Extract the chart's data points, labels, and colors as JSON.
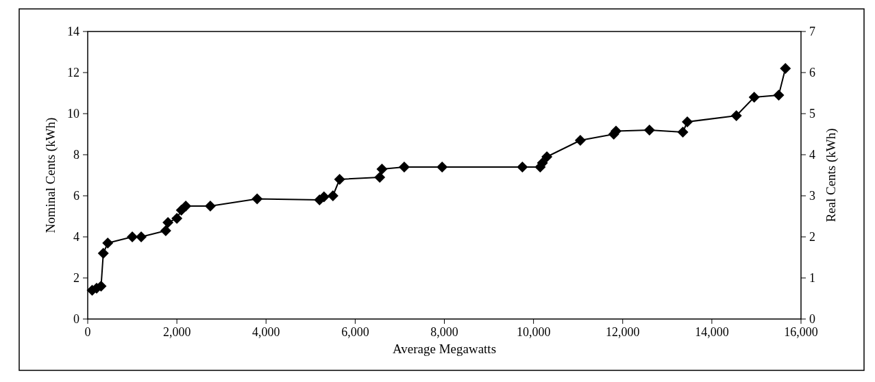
{
  "chart_data": {
    "type": "line",
    "xlabel": "Average Megawatts",
    "ylabel": "Nominal Cents (kWh)",
    "y2label": "Real Cents (kWh)",
    "xlim": [
      0,
      16000
    ],
    "xticks": [
      {
        "value": 0,
        "label": "0"
      },
      {
        "value": 2000,
        "label": "2,000"
      },
      {
        "value": 4000,
        "label": "4,000"
      },
      {
        "value": 6000,
        "label": "6,000"
      },
      {
        "value": 8000,
        "label": "8,000"
      },
      {
        "value": 10000,
        "label": "10,000"
      },
      {
        "value": 12000,
        "label": "12,000"
      },
      {
        "value": 14000,
        "label": "14,000"
      },
      {
        "value": 16000,
        "label": "16,000"
      }
    ],
    "ylim": [
      0,
      14
    ],
    "yticks": [
      0,
      2,
      4,
      6,
      8,
      10,
      12,
      14
    ],
    "y2lim": [
      0,
      7
    ],
    "y2ticks": [
      0,
      1,
      2,
      3,
      4,
      5,
      6,
      7
    ],
    "grid": false,
    "marker": "diamond",
    "line_style": "solid",
    "series": [
      {
        "color": "#000000",
        "x": [
          100,
          200,
          300,
          350,
          450,
          1000,
          1200,
          1750,
          1800,
          2000,
          2100,
          2200,
          2750,
          3800,
          5200,
          5300,
          5500,
          5650,
          6550,
          6600,
          7100,
          7950,
          9750,
          10150,
          10200,
          10300,
          11050,
          11800,
          11850,
          12600,
          13350,
          13450,
          14550,
          14950,
          15500,
          15650
        ],
        "values": [
          1.4,
          1.5,
          1.6,
          3.2,
          3.7,
          4.0,
          4.0,
          4.3,
          4.7,
          4.9,
          5.3,
          5.5,
          5.5,
          5.85,
          5.8,
          5.95,
          6.0,
          6.8,
          6.9,
          7.3,
          7.4,
          7.4,
          7.4,
          7.4,
          7.6,
          7.9,
          8.7,
          9.0,
          9.15,
          9.2,
          9.1,
          9.6,
          9.9,
          10.8,
          10.9,
          12.2
        ]
      }
    ]
  }
}
